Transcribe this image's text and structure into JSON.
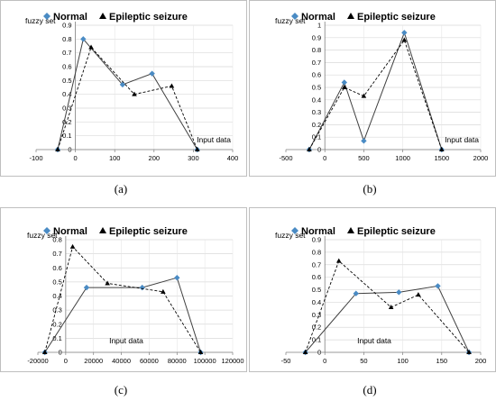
{
  "chart_data": [
    {
      "type": "line",
      "caption": "(a)",
      "ylabel": "fuzzy set",
      "xlabel": "Input data",
      "xlim": [
        -100,
        400
      ],
      "xticks": [
        -100,
        0,
        100,
        200,
        300,
        400
      ],
      "ylim": [
        0,
        0.9
      ],
      "yticks": [
        0,
        0.1,
        0.2,
        0.3,
        0.4,
        0.5,
        0.6,
        0.7,
        0.8,
        0.9
      ],
      "grid": true,
      "legend": "top",
      "series": [
        {
          "name": "Normal",
          "x": [
            -45,
            20,
            120,
            195,
            310
          ],
          "y": [
            0,
            0.8,
            0.47,
            0.55,
            0
          ]
        },
        {
          "name": "Epileptic seizure",
          "x": [
            -45,
            40,
            150,
            245,
            310
          ],
          "y": [
            0,
            0.74,
            0.4,
            0.46,
            0
          ]
        }
      ]
    },
    {
      "type": "line",
      "caption": "(b)",
      "ylabel": "fuzzy set",
      "xlabel": "Input data",
      "xlim": [
        -500,
        2000
      ],
      "xticks": [
        -500,
        0,
        500,
        1000,
        1500,
        2000
      ],
      "ylim": [
        0,
        1
      ],
      "yticks": [
        0,
        0.1,
        0.2,
        0.3,
        0.4,
        0.5,
        0.6,
        0.7,
        0.8,
        0.9,
        1
      ],
      "grid": true,
      "legend": "top",
      "series": [
        {
          "name": "Normal",
          "x": [
            -200,
            250,
            500,
            1020,
            1500
          ],
          "y": [
            0,
            0.54,
            0.07,
            0.94,
            0
          ]
        },
        {
          "name": "Epileptic seizure",
          "x": [
            -200,
            250,
            500,
            1020,
            1500
          ],
          "y": [
            0,
            0.5,
            0.43,
            0.88,
            0
          ]
        }
      ]
    },
    {
      "type": "line",
      "caption": "(c)",
      "ylabel": "fuzzy set",
      "xlabel": "Input data",
      "xlim": [
        -20000,
        120000
      ],
      "xticks": [
        -20000,
        0,
        20000,
        40000,
        60000,
        80000,
        100000,
        120000
      ],
      "ylim": [
        0,
        0.8
      ],
      "yticks": [
        0,
        0.1,
        0.2,
        0.3,
        0.4,
        0.5,
        0.6,
        0.7,
        0.8
      ],
      "grid": true,
      "legend": "top",
      "series": [
        {
          "name": "Normal",
          "x": [
            -15000,
            15000,
            55000,
            80000,
            97000
          ],
          "y": [
            0,
            0.46,
            0.46,
            0.53,
            0
          ]
        },
        {
          "name": "Epileptic seizure",
          "x": [
            -15000,
            5000,
            30000,
            70000,
            97000
          ],
          "y": [
            0,
            0.75,
            0.49,
            0.43,
            0
          ]
        }
      ]
    },
    {
      "type": "line",
      "caption": "(d)",
      "ylabel": "fuzzy set",
      "xlabel": "Input data",
      "xlim": [
        -50,
        200
      ],
      "xticks": [
        -50,
        0,
        50,
        100,
        150,
        200
      ],
      "ylim": [
        0,
        0.9
      ],
      "yticks": [
        0,
        0.1,
        0.2,
        0.3,
        0.4,
        0.5,
        0.6,
        0.7,
        0.8,
        0.9
      ],
      "grid": true,
      "legend": "top",
      "series": [
        {
          "name": "Normal",
          "x": [
            -25,
            40,
            95,
            145,
            185
          ],
          "y": [
            0,
            0.47,
            0.48,
            0.53,
            0
          ]
        },
        {
          "name": "Epileptic seizure",
          "x": [
            -25,
            18,
            85,
            120,
            185
          ],
          "y": [
            0,
            0.73,
            0.36,
            0.46,
            0
          ]
        }
      ]
    }
  ]
}
